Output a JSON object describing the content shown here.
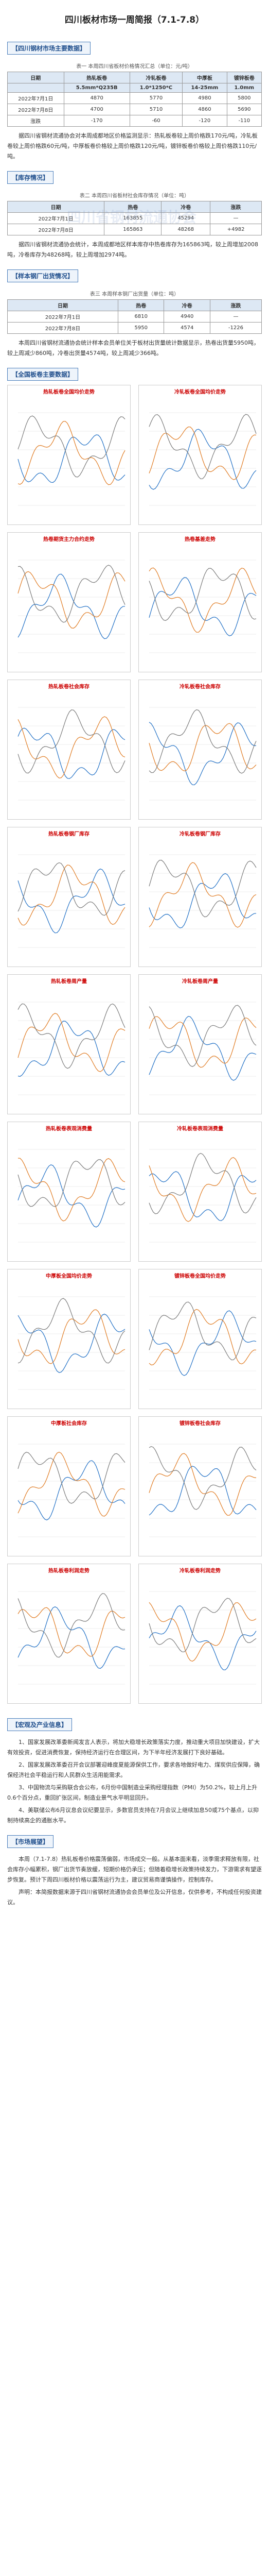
{
  "header": {
    "title": "四川板材市场一周简报（7.1-7.8）"
  },
  "market": {
    "heading": "【四川钢材市场主要数据】",
    "table": {
      "caption": "表一 本周四川省板材价格情况汇总（单位：元/吨）",
      "header": [
        "日期",
        "热轧板卷",
        "冷轧板卷",
        "中厚板",
        "镀锌板卷"
      ],
      "spec": [
        "",
        "5.5mm*Q235B",
        "1.0*1250*C",
        "14-25mm",
        "1.0mm"
      ],
      "rows": [
        [
          "2022年7月1日",
          "4870",
          "5770",
          "4980",
          "5800"
        ],
        [
          "2022年7月8日",
          "4700",
          "5710",
          "4860",
          "5690"
        ],
        [
          "涨跌",
          "-170",
          "-60",
          "-120",
          "-110"
        ]
      ]
    },
    "text": "据四川省钢材流通协会对本周成都地区价格监测显示：热轧板卷较上周价格跌170元/吨，冷轧板卷较上周价格跌60元/吨，中厚板卷价格较上周价格跌120元/吨，镀锌板卷价格较上周价格跌110元/吨。"
  },
  "inventory": {
    "heading": "【库存情况】",
    "table": {
      "caption": "表二 本周四川省板材社会库存情况（单位：吨）",
      "header": [
        "日期",
        "热卷",
        "冷卷",
        "涨跌"
      ],
      "rows": [
        [
          "2022年7月1日",
          "163855",
          "45294",
          "—"
        ],
        [
          "2022年7月8日",
          "165863",
          "48268",
          "+4982"
        ]
      ]
    },
    "text": "据四川省钢材流通协会统计，本周成都地区样本库存中热卷库存为165863吨，较上周增加2008吨，冷卷库存为48268吨，较上周增加2974吨。"
  },
  "shipment": {
    "heading": "【样本钢厂出货情况】",
    "table": {
      "caption": "表三 本周样本钢厂出货量（单位：吨）",
      "header": [
        "日期",
        "热卷",
        "冷卷",
        "涨跌"
      ],
      "rows": [
        [
          "2022年7月1日",
          "6810",
          "4940",
          "—"
        ],
        [
          "2022年7月8日",
          "5950",
          "4574",
          "-1226"
        ]
      ]
    },
    "text": "本周四川省钢材流通协会统计样本会员单位关于板材出货量统计数据显示，热卷出货量5950吨，较上周减少860吨，冷卷出货量4574吨，较上周减少366吨。"
  },
  "national": {
    "heading": "【全国板卷主要数据】",
    "charts": [
      "热轧板卷全国均价走势",
      "冷轧板卷全国均价走势",
      "热卷期货主力合约走势",
      "热卷基差走势",
      "热轧板卷社会库存",
      "冷轧板卷社会库存",
      "热轧板卷钢厂库存",
      "冷轧板卷钢厂库存",
      "热轧板卷周产量",
      "冷轧板卷周产量",
      "热轧板卷表观消费量",
      "冷轧板卷表观消费量",
      "中厚板全国均价走势",
      "镀锌板卷全国均价走势",
      "中厚板社会库存",
      "镀锌板卷社会库存",
      "热轧板卷利润走势",
      "冷轧板卷利润走势"
    ]
  },
  "macro": {
    "heading": "【宏观及产业信息】",
    "paragraphs": [
      "1、国家发展改革委新闻发言人表示，将加大稳增长政策落实力度，推动重大项目加快建设，扩大有效投资，促进消费恢复，保持经济运行在合理区间，为下半年经济发展打下良好基础。",
      "2、国家发展改革委召开会议部署迎峰度夏能源保供工作，要求各地做好电力、煤炭供应保障，确保经济社会平稳运行和人民群众生活用能需求。",
      "3、中国物流与采购联合会公布，6月份中国制造业采购经理指数（PMI）为50.2%，较上月上升0.6个百分点，重回扩张区间，制造业景气水平明显回升。",
      "4、美联储公布6月议息会议纪要显示，多数官员支持在7月会议上继续加息50或75个基点，以抑制持续高企的通胀水平。"
    ]
  },
  "outlook": {
    "heading": "【市场展望】",
    "paragraphs": [
      "本周（7.1-7.8）热轧板卷价格震荡偏弱，市场成交一般。从基本面来看，淡季需求释放有限，社会库存小幅累积，钢厂出货节奏放缓，短期价格仍承压；但随着稳增长政策持续发力，下游需求有望逐步恢复。预计下周四川板材价格以震荡运行为主，建议贸易商谨慎操作，控制库存。",
      "声明：本简报数据来源于四川省钢材流通协会会员单位及公开信息，仅供参考，不构成任何投资建议。"
    ]
  },
  "watermark": "四川省钢材流通协会"
}
